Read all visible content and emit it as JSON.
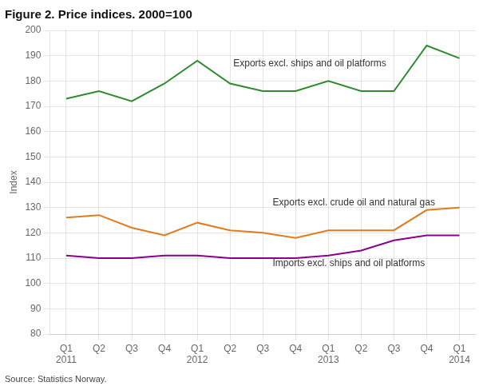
{
  "chart_data": {
    "type": "line",
    "title": "Figure 2. Price indices. 2000=100",
    "y_label": "Index",
    "source": "Source: Statistics Norway.",
    "categories": [
      "Q1\n2011",
      "Q2",
      "Q3",
      "Q4",
      "Q1\n2012",
      "Q2",
      "Q3",
      "Q4",
      "Q1\n2013",
      "Q2",
      "Q3",
      "Q4",
      "Q1\n2014"
    ],
    "series": [
      {
        "name": "Exports excl. ships and oil platforms",
        "color": "#2e8b2e",
        "values": [
          173,
          176,
          172,
          179,
          188,
          179,
          176,
          176,
          180,
          176,
          176,
          194,
          189
        ]
      },
      {
        "name": "Exports excl. crude oil and natural gas",
        "color": "#e07b20",
        "values": [
          126,
          127,
          122,
          119,
          124,
          121,
          120,
          118,
          121,
          121,
          121,
          129,
          130
        ]
      },
      {
        "name": "Imports excl. ships and oil platforms",
        "color": "#8b008b",
        "values": [
          111,
          110,
          110,
          111,
          111,
          110,
          110,
          110,
          111,
          113,
          117,
          119,
          119
        ]
      }
    ],
    "annotations": [
      {
        "text": "Exports excl. ships and oil platforms",
        "x": 5.1,
        "y": 185
      },
      {
        "text": "Exports excl. crude oil and natural gas",
        "x": 6.3,
        "y": 130
      },
      {
        "text": "Imports excl. ships and oil platforms",
        "x": 6.3,
        "y": 106
      }
    ],
    "ylim": [
      80,
      200
    ],
    "yticks": [
      80,
      90,
      100,
      110,
      120,
      130,
      140,
      150,
      160,
      170,
      180,
      190,
      200
    ],
    "grid": true
  }
}
